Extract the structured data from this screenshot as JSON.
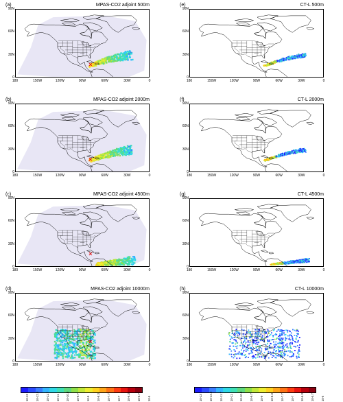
{
  "panels": [
    {
      "letter": "(a)",
      "title": "MPAS-CO2 adjoint 500m",
      "type": "mpas",
      "level": 0
    },
    {
      "letter": "(e)",
      "title": "CT-L 500m",
      "type": "ctl",
      "level": 0
    },
    {
      "letter": "(b)",
      "title": "MPAS-CO2 adjoint 2000m",
      "type": "mpas",
      "level": 1
    },
    {
      "letter": "(f)",
      "title": "CT-L 2000m",
      "type": "ctl",
      "level": 1
    },
    {
      "letter": "(c)",
      "title": "MPAS-CO2 adjoint 4500m",
      "type": "mpas",
      "level": 2
    },
    {
      "letter": "(g)",
      "title": "CT-L 4500m",
      "type": "ctl",
      "level": 2
    },
    {
      "letter": "(d)",
      "title": "MPAS-CO2 adjoint 10000m",
      "type": "mpas",
      "level": 3
    },
    {
      "letter": "(h)",
      "title": "CT-L 10000m",
      "type": "ctl",
      "level": 3
    }
  ],
  "axes": {
    "lat_labels": [
      "90N",
      "60N",
      "30N",
      "0"
    ],
    "lon_labels": [
      "180",
      "150W",
      "120W",
      "90W",
      "60W",
      "30W",
      "0"
    ]
  },
  "colorbar": {
    "colors": [
      "#1c1cff",
      "#2b4cff",
      "#3a7dff",
      "#33b5ff",
      "#2fd9e6",
      "#3fe0b5",
      "#5fd97f",
      "#8fe04a",
      "#c2e83a",
      "#eeee30",
      "#ffd21f",
      "#ffa519",
      "#ff7315",
      "#ff3d12",
      "#e8140f",
      "#b8000d",
      "#8a0010"
    ],
    "ticks": [
      "10-13",
      "10-12.3",
      "10-11.7",
      "10-11",
      "10-10.3",
      "10-9.7",
      "10-9",
      "10-8.3",
      "10-7.7",
      "10-7",
      "10-6.3",
      "10-5.7",
      "10-5"
    ]
  },
  "colors": {
    "land_shade": "#e8e6f5",
    "coast": "#000000",
    "marker": "#e11d1d",
    "blue": "#1d2bff",
    "cyan": "#2fd9e6",
    "green": "#5fd97f",
    "yellow": "#eeee30"
  }
}
